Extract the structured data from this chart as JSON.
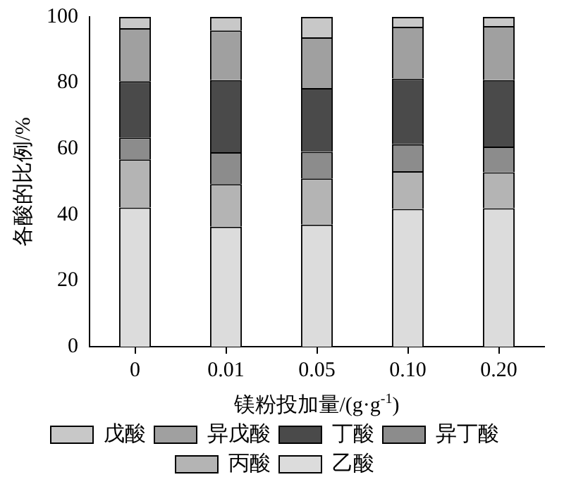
{
  "chart_data": {
    "type": "bar",
    "stacked": true,
    "xlabel": "镁粉投加量/(g·g$^{-1}$)",
    "ylabel": "各酸的比例/%",
    "categories": [
      "0",
      "0.01",
      "0.05",
      "0.10",
      "0.20"
    ],
    "series": [
      {
        "name": "乙酸",
        "color": "#dcdcdc",
        "values": [
          42.2,
          36.4,
          37.0,
          41.8,
          42.0
        ]
      },
      {
        "name": "丙酸",
        "color": "#b4b4b4",
        "values": [
          14.6,
          12.9,
          14.0,
          11.4,
          10.9
        ]
      },
      {
        "name": "异丁酸",
        "color": "#8c8c8c",
        "values": [
          6.6,
          9.7,
          8.1,
          8.2,
          7.8
        ]
      },
      {
        "name": "丁酸",
        "color": "#4a4a4a",
        "values": [
          17.1,
          21.8,
          19.3,
          19.9,
          20.1
        ]
      },
      {
        "name": "异戊酸",
        "color": "#a0a0a0",
        "values": [
          16.1,
          15.1,
          15.4,
          15.7,
          16.4
        ]
      },
      {
        "name": "戊酸",
        "color": "#c8c8c8",
        "values": [
          3.4,
          4.1,
          6.2,
          3.0,
          2.8
        ]
      }
    ],
    "ylim": [
      0,
      100
    ],
    "yticks": [
      0,
      20,
      40,
      60,
      80,
      100
    ],
    "grid": false,
    "legend": "bottom"
  }
}
